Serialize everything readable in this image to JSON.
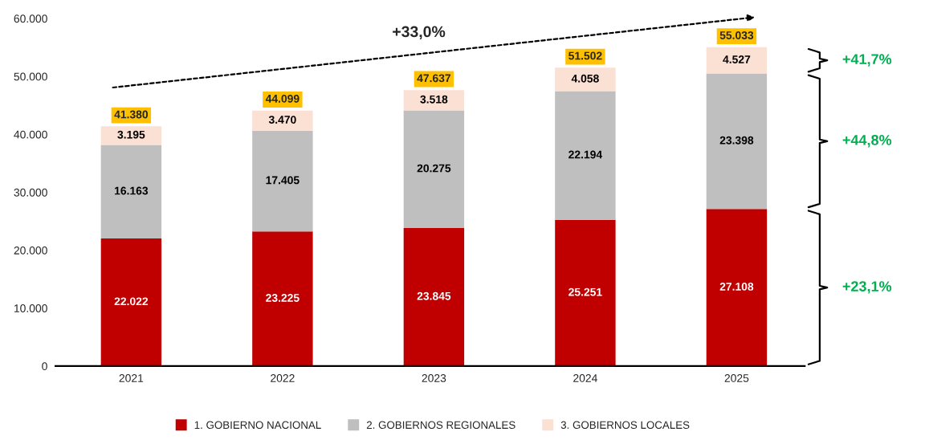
{
  "chart_data": {
    "type": "bar",
    "stacked": true,
    "categories": [
      "2021",
      "2022",
      "2023",
      "2024",
      "2025"
    ],
    "series": [
      {
        "name": "1. GOBIERNO NACIONAL",
        "color": "#c00000",
        "values": [
          22022,
          23225,
          23845,
          25251,
          27108
        ],
        "value_labels": [
          "22.022",
          "23.225",
          "23.845",
          "25.251",
          "27.108"
        ]
      },
      {
        "name": "2. GOBIERNOS REGIONALES",
        "color": "#bfbfbf",
        "values": [
          16163,
          17405,
          20275,
          22194,
          23398
        ],
        "value_labels": [
          "16.163",
          "17.405",
          "20.275",
          "22.194",
          "23.398"
        ]
      },
      {
        "name": "3. GOBIERNOS LOCALES",
        "color": "#fbe0d4",
        "values": [
          3195,
          3470,
          3518,
          4058,
          4527
        ],
        "value_labels": [
          "3.195",
          "3.470",
          "3.518",
          "4.058",
          "4.527"
        ]
      }
    ],
    "totals": [
      "41.380",
      "44.099",
      "47.637",
      "51.502",
      "55.033"
    ],
    "ylim": [
      0,
      60000
    ],
    "yticks": [
      {
        "value": 0,
        "label": "0"
      },
      {
        "value": 10000,
        "label": "10.000"
      },
      {
        "value": 20000,
        "label": "20.000"
      },
      {
        "value": 30000,
        "label": "30.000"
      },
      {
        "value": 40000,
        "label": "40.000"
      },
      {
        "value": 50000,
        "label": "50.000"
      },
      {
        "value": 60000,
        "label": "60.000"
      }
    ],
    "annotations": [
      "+33,0%",
      "+23,1%",
      "+44,8%",
      "+41,7%"
    ],
    "legend": "bottom",
    "grid": false
  }
}
